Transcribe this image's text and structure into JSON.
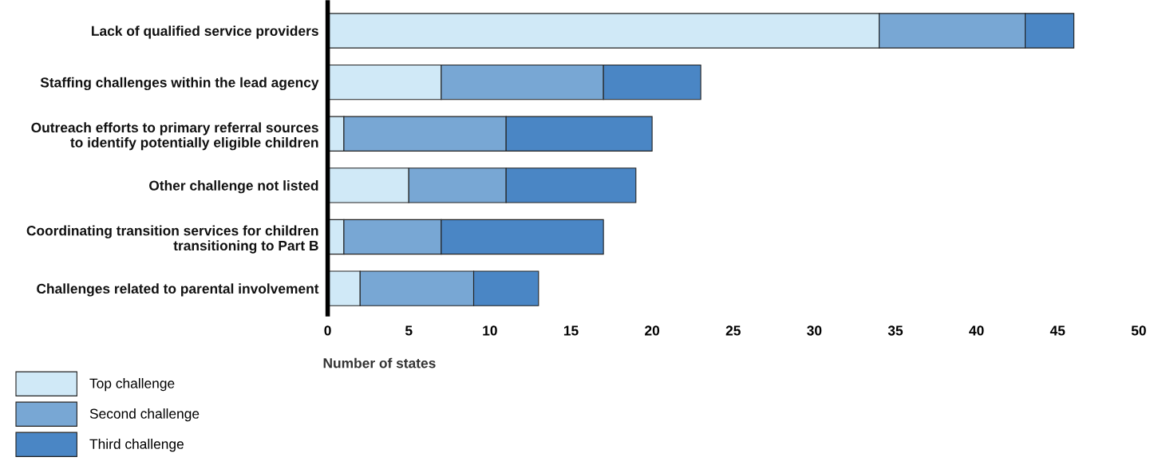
{
  "chart_data": {
    "type": "bar",
    "orientation": "horizontal",
    "stacked": true,
    "xlabel": "Number of states",
    "categories": [
      "Lack of qualified service providers",
      "Staffing challenges within the lead agency",
      "Outreach efforts to primary referral sources\nto identify potentially eligible children",
      "Other challenge not listed",
      "Coordinating transition services for children\ntransitioning to Part B",
      "Challenges related to parental involvement"
    ],
    "series": [
      {
        "name": "Top challenge",
        "color": "#d0e9f7",
        "values": [
          34,
          7,
          1,
          5,
          1,
          2
        ]
      },
      {
        "name": "Second challenge",
        "color": "#78a7d4",
        "values": [
          9,
          10,
          10,
          6,
          6,
          7
        ]
      },
      {
        "name": "Third challenge",
        "color": "#4a86c5",
        "values": [
          3,
          6,
          9,
          8,
          10,
          4
        ]
      }
    ],
    "xlim": [
      0,
      50
    ],
    "xticks": [
      0,
      5,
      10,
      15,
      20,
      25,
      30,
      35,
      40,
      45,
      50
    ],
    "grid": false,
    "legend": "bottom left"
  }
}
